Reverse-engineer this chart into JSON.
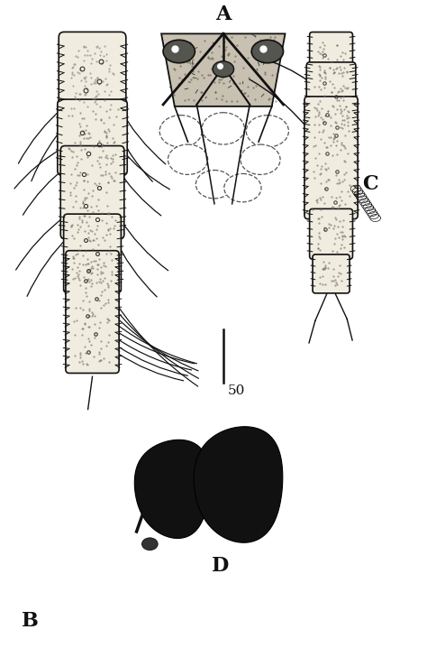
{
  "background_color": "#ffffff",
  "label_A": "A",
  "label_B": "B",
  "label_C": "C",
  "label_D": "D",
  "scale_label": "50",
  "fig_width": 4.74,
  "fig_height": 7.18,
  "dpi": 100
}
